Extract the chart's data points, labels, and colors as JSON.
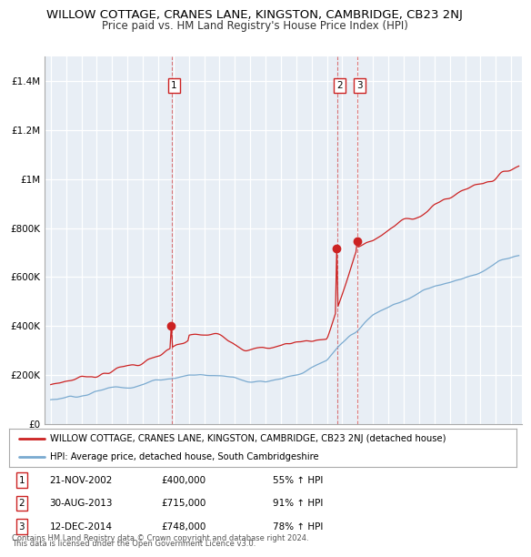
{
  "title": "WILLOW COTTAGE, CRANES LANE, KINGSTON, CAMBRIDGE, CB23 2NJ",
  "subtitle": "Price paid vs. HM Land Registry's House Price Index (HPI)",
  "title_fontsize": 9.5,
  "subtitle_fontsize": 8.5,
  "background_color": "#ffffff",
  "grid_color": "#cccccc",
  "plot_bg": "#e8eef5",
  "red_line_color": "#cc2222",
  "blue_line_color": "#7aaad0",
  "ylim": [
    0,
    1500000
  ],
  "yticks": [
    0,
    200000,
    400000,
    600000,
    800000,
    1000000,
    1200000,
    1400000
  ],
  "ytick_labels": [
    "£0",
    "£200K",
    "£400K",
    "£600K",
    "£800K",
    "£1M",
    "£1.2M",
    "£1.4M"
  ],
  "legend_red_label": "WILLOW COTTAGE, CRANES LANE, KINGSTON, CAMBRIDGE, CB23 2NJ (detached house)",
  "legend_blue_label": "HPI: Average price, detached house, South Cambridgeshire",
  "sale1_date": "21-NOV-2002",
  "sale1_price": 400000,
  "sale1_year": 2002.875,
  "sale1_pct": "55% ↑ HPI",
  "sale2_date": "30-AUG-2013",
  "sale2_price": 715000,
  "sale2_year": 2013.667,
  "sale2_pct": "91% ↑ HPI",
  "sale3_date": "12-DEC-2014",
  "sale3_price": 748000,
  "sale3_year": 2014.958,
  "sale3_pct": "78% ↑ HPI",
  "footnote1": "Contains HM Land Registry data © Crown copyright and database right 2024.",
  "footnote2": "This data is licensed under the Open Government Licence v3.0.",
  "sale_marker_size": 6,
  "vline_color": "#cc2222",
  "vline_alpha": 0.6
}
